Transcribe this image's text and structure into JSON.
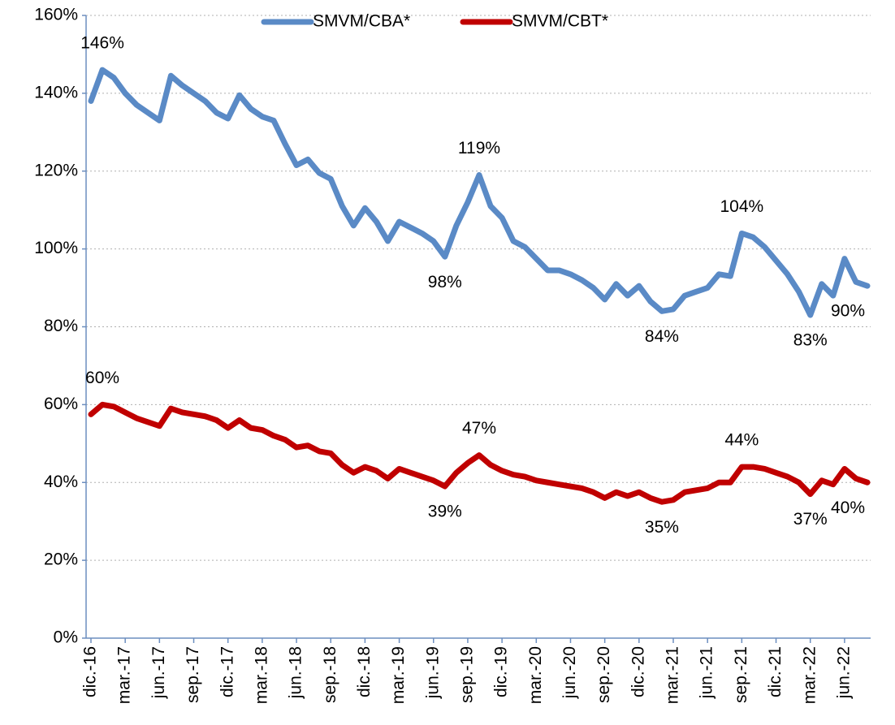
{
  "chart_data": {
    "type": "line",
    "categories": [
      "dic.-16",
      null,
      null,
      "mar.-17",
      null,
      null,
      "jun.-17",
      null,
      null,
      "sep.-17",
      null,
      null,
      "dic.-17",
      null,
      null,
      "mar.-18",
      null,
      null,
      "jun.-18",
      null,
      null,
      "sep.-18",
      null,
      null,
      "dic.-18",
      null,
      null,
      "mar.-19",
      null,
      null,
      "jun.-19",
      null,
      null,
      "sep.-19",
      null,
      null,
      "dic.-19",
      null,
      null,
      "mar.-20",
      null,
      null,
      "jun.-20",
      null,
      null,
      "sep.-20",
      null,
      null,
      "dic.-20",
      null,
      null,
      "mar.-21",
      null,
      null,
      "jun.-21",
      null,
      null,
      "sep.-21",
      null,
      null,
      "dic.-21",
      null,
      null,
      "mar.-22",
      null,
      null,
      "jun.-22",
      null,
      null
    ],
    "series": [
      {
        "name": "SMVM/CBA*",
        "color": "#5a8ac6",
        "values": [
          138,
          146,
          144,
          140,
          137,
          135,
          133,
          144.5,
          142,
          140,
          138,
          135,
          133.5,
          139.5,
          136,
          134,
          133,
          127,
          121.5,
          123,
          119.5,
          118,
          111,
          106,
          110.5,
          107,
          102,
          107,
          105.5,
          104,
          102,
          98,
          106,
          112,
          119,
          111,
          108,
          102,
          100.5,
          97.5,
          94.5,
          94.5,
          93.5,
          92,
          90,
          87,
          91,
          88,
          90.5,
          86.5,
          84,
          84.5,
          88,
          89,
          90,
          93.5,
          93,
          104,
          103,
          100.5,
          97,
          93.5,
          89,
          83,
          91,
          88,
          97.5,
          91.5,
          90.5
        ],
        "value_labels": [
          null,
          "146%",
          null,
          null,
          null,
          null,
          null,
          null,
          null,
          null,
          null,
          null,
          null,
          null,
          null,
          null,
          null,
          null,
          null,
          null,
          null,
          null,
          null,
          null,
          null,
          null,
          null,
          null,
          null,
          null,
          null,
          "98%",
          null,
          null,
          "119%",
          null,
          null,
          null,
          null,
          null,
          null,
          null,
          null,
          null,
          null,
          null,
          null,
          null,
          null,
          null,
          "84%",
          null,
          null,
          null,
          null,
          null,
          null,
          "104%",
          null,
          null,
          null,
          null,
          null,
          "83%",
          null,
          null,
          null,
          null,
          "90%"
        ]
      },
      {
        "name": "SMVM/CBT*",
        "color": "#c00000",
        "values": [
          57.5,
          60,
          59.5,
          58,
          56.5,
          55.5,
          54.5,
          59,
          58,
          57.5,
          57,
          56,
          54,
          56,
          54,
          53.5,
          52,
          51,
          49,
          49.5,
          48,
          47.5,
          44.5,
          42.5,
          44,
          43,
          41,
          43.5,
          42.5,
          41.5,
          40.5,
          39,
          42.5,
          45,
          47,
          44.5,
          43,
          42,
          41.5,
          40.5,
          40,
          39.5,
          39,
          38.5,
          37.5,
          36,
          37.5,
          36.5,
          37.5,
          36,
          35,
          35.5,
          37.5,
          38,
          38.5,
          40,
          40,
          44,
          44,
          43.5,
          42.5,
          41.5,
          40,
          37,
          40.5,
          39.5,
          43.5,
          41,
          40
        ],
        "value_labels": [
          null,
          "60%",
          null,
          null,
          null,
          null,
          null,
          null,
          null,
          null,
          null,
          null,
          null,
          null,
          null,
          null,
          null,
          null,
          null,
          null,
          null,
          null,
          null,
          null,
          null,
          null,
          null,
          null,
          null,
          null,
          null,
          "39%",
          null,
          null,
          "47%",
          null,
          null,
          null,
          null,
          null,
          null,
          null,
          null,
          null,
          null,
          null,
          null,
          null,
          null,
          null,
          "35%",
          null,
          null,
          null,
          null,
          null,
          null,
          "44%",
          null,
          null,
          null,
          null,
          null,
          "37%",
          null,
          null,
          null,
          null,
          "40%"
        ]
      }
    ],
    "ylim": [
      0,
      160
    ],
    "yticks": [
      {
        "value": 0,
        "label": "0%"
      },
      {
        "value": 20,
        "label": "20%"
      },
      {
        "value": 40,
        "label": "40%"
      },
      {
        "value": 60,
        "label": "60%"
      },
      {
        "value": 80,
        "label": "80%"
      },
      {
        "value": 100,
        "label": "100%"
      },
      {
        "value": 120,
        "label": "120%"
      },
      {
        "value": 140,
        "label": "140%"
      },
      {
        "value": 160,
        "label": "160%"
      }
    ],
    "grid": true,
    "legend": "top"
  }
}
